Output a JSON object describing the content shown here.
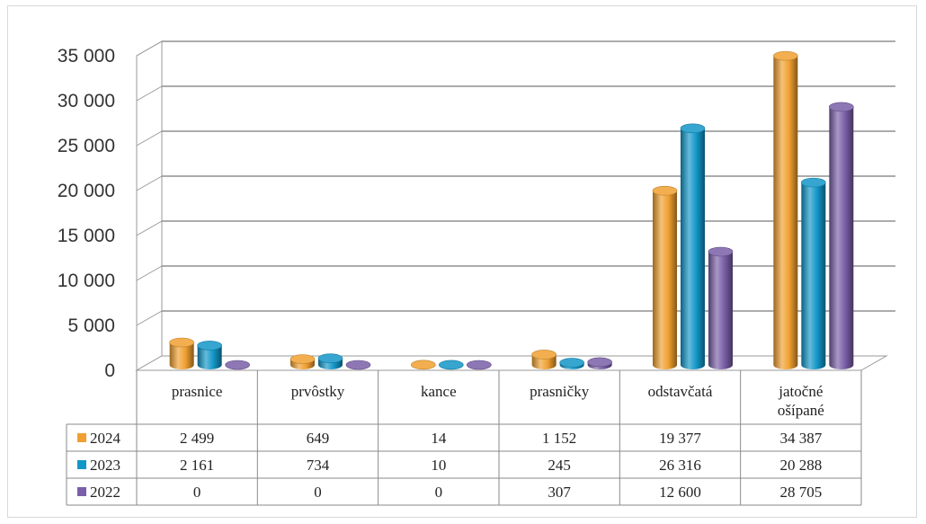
{
  "chart_data": {
    "type": "bar",
    "categories": [
      "prasnice",
      "prvôstky",
      "kance",
      "prasničky",
      "odstavčatá",
      "jatočné ošípané"
    ],
    "series": [
      {
        "name": "2024",
        "color": "#f0a030",
        "values": [
          2499,
          649,
          14,
          1152,
          19377,
          34387
        ],
        "labels": [
          "2 499",
          "649",
          "14",
          "1 152",
          "19 377",
          "34 387"
        ]
      },
      {
        "name": "2023",
        "color": "#1296c8",
        "values": [
          2161,
          734,
          10,
          245,
          26316,
          20288
        ],
        "labels": [
          "2 161",
          "734",
          "10",
          "245",
          "26 316",
          "20 288"
        ]
      },
      {
        "name": "2022",
        "color": "#7a5fa8",
        "values": [
          0,
          0,
          0,
          307,
          12600,
          28705
        ],
        "labels": [
          "0",
          "0",
          "0",
          "307",
          "12 600",
          "28 705"
        ]
      }
    ],
    "yticks": [
      "0",
      "5 000",
      "10 000",
      "15 000",
      "20 000",
      "25 000",
      "30 000",
      "35 000"
    ],
    "ylim": [
      0,
      35000
    ],
    "grid": true,
    "legend": "data-table",
    "style": "3d-cylinder"
  }
}
